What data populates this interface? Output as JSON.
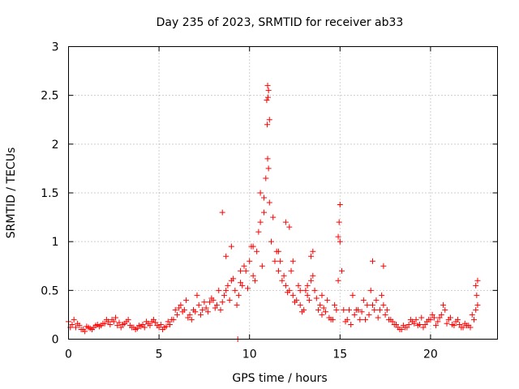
{
  "chart_data": {
    "type": "scatter",
    "title": "Day 235 of 2023, SRMTID for receiver ab33",
    "xlabel": "GPS time / hours",
    "ylabel": "SRMTID / TECUs",
    "xlim": [
      0,
      23.7
    ],
    "ylim": [
      0,
      3
    ],
    "xticks": [
      "0",
      "5",
      "10",
      "15",
      "20"
    ],
    "yticks": [
      "0",
      "0.5",
      "1",
      "1.5",
      "2",
      "2.5",
      "3"
    ],
    "grid": true,
    "marker": "plus",
    "series": [
      {
        "name": "SRMTID",
        "color": "#ff0000",
        "x": [
          0.0,
          0.2,
          0.4,
          0.6,
          0.8,
          1.0,
          1.2,
          1.4,
          1.6,
          1.8,
          2.0,
          2.2,
          2.4,
          2.6,
          2.8,
          3.0,
          3.2,
          3.4,
          3.6,
          3.8,
          4.0,
          4.2,
          4.4,
          4.6,
          4.8,
          5.0,
          5.2,
          5.4,
          5.6,
          5.8,
          6.0,
          6.2,
          6.4,
          6.6,
          6.8,
          7.0,
          7.2,
          7.4,
          7.6,
          7.8,
          8.0,
          8.2,
          8.4,
          8.6,
          8.8,
          9.0,
          9.2,
          9.4,
          9.6,
          9.8,
          10.0,
          10.2,
          10.4,
          10.6,
          10.8,
          10.9,
          11.0,
          11.05,
          11.1,
          11.2,
          11.4,
          11.6,
          11.8,
          12.0,
          12.2,
          12.4,
          12.6,
          12.8,
          13.0,
          13.2,
          13.4,
          13.6,
          13.8,
          14.0,
          14.2,
          14.4,
          14.6,
          14.8,
          14.9,
          15.0,
          15.1,
          15.2,
          15.4,
          15.6,
          15.8,
          16.0,
          16.2,
          16.4,
          16.6,
          16.8,
          17.0,
          17.2,
          17.4,
          17.6,
          17.8,
          18.0,
          18.2,
          18.4,
          18.6,
          18.8,
          19.0,
          19.2,
          19.4,
          19.6,
          19.8,
          20.0,
          20.2,
          20.4,
          20.6,
          20.8,
          21.0,
          21.2,
          21.4,
          21.6,
          21.8,
          22.0,
          22.2,
          22.4,
          22.5,
          22.6,
          0.1,
          0.3,
          0.5,
          0.7,
          0.9,
          1.1,
          1.3,
          1.5,
          1.7,
          1.9,
          2.1,
          2.3,
          2.5,
          2.7,
          2.9,
          3.1,
          3.3,
          3.5,
          3.7,
          3.9,
          4.1,
          4.3,
          4.5,
          4.7,
          4.9,
          5.1,
          5.3,
          5.5,
          5.7,
          5.9,
          6.1,
          6.3,
          6.5,
          6.7,
          6.9,
          7.1,
          7.3,
          7.5,
          7.7,
          7.9,
          8.1,
          8.3,
          8.5,
          8.7,
          8.9,
          9.1,
          9.3,
          9.5,
          9.7,
          9.9,
          10.1,
          10.3,
          10.5,
          10.7,
          11.3,
          11.5,
          11.7,
          11.9,
          12.1,
          12.3,
          12.5,
          12.7,
          12.9,
          13.1,
          13.3,
          13.5,
          13.7,
          13.9,
          14.1,
          14.3,
          14.5,
          14.7,
          15.3,
          15.5,
          15.7,
          15.9,
          16.1,
          16.3,
          16.5,
          16.7,
          16.9,
          17.1,
          17.3,
          17.5,
          17.7,
          17.9,
          18.1,
          18.3,
          18.5,
          18.7,
          18.9,
          19.1,
          19.3,
          19.5,
          19.7,
          19.9,
          20.1,
          20.3,
          20.5,
          20.7,
          20.9,
          21.1,
          21.3,
          21.5,
          21.7,
          21.9,
          22.1,
          22.3,
          22.55,
          10.95,
          11.0,
          11.05,
          11.1,
          10.98,
          11.02,
          8.5,
          9.0,
          9.35,
          10.6,
          10.8,
          12.0,
          12.2,
          13.4,
          13.5,
          14.9,
          14.95,
          15.0,
          16.8,
          17.4,
          22.5,
          22.6,
          8.7,
          9.5,
          10.2,
          11.6,
          12.4,
          12.8,
          13.2,
          14.0
        ],
        "y": [
          0.18,
          0.15,
          0.12,
          0.14,
          0.1,
          0.13,
          0.11,
          0.12,
          0.15,
          0.14,
          0.16,
          0.18,
          0.2,
          0.22,
          0.17,
          0.15,
          0.18,
          0.14,
          0.12,
          0.11,
          0.13,
          0.12,
          0.16,
          0.18,
          0.17,
          0.12,
          0.1,
          0.13,
          0.15,
          0.2,
          0.25,
          0.35,
          0.3,
          0.22,
          0.2,
          0.28,
          0.35,
          0.3,
          0.32,
          0.38,
          0.4,
          0.35,
          0.3,
          0.45,
          0.55,
          0.6,
          0.5,
          0.45,
          0.55,
          0.7,
          0.8,
          0.65,
          0.9,
          1.2,
          1.45,
          1.65,
          1.85,
          1.75,
          1.4,
          1.0,
          0.8,
          0.7,
          0.6,
          0.55,
          0.5,
          0.45,
          0.4,
          0.35,
          0.3,
          0.45,
          0.6,
          0.5,
          0.3,
          0.25,
          0.28,
          0.22,
          0.2,
          0.3,
          0.6,
          1.0,
          0.7,
          0.3,
          0.2,
          0.15,
          0.25,
          0.3,
          0.28,
          0.2,
          0.25,
          0.35,
          0.4,
          0.3,
          0.35,
          0.3,
          0.2,
          0.15,
          0.12,
          0.1,
          0.12,
          0.15,
          0.18,
          0.2,
          0.15,
          0.12,
          0.18,
          0.2,
          0.22,
          0.18,
          0.25,
          0.3,
          0.2,
          0.15,
          0.18,
          0.15,
          0.12,
          0.14,
          0.12,
          0.2,
          0.3,
          0.35,
          0.12,
          0.2,
          0.16,
          0.1,
          0.08,
          0.12,
          0.1,
          0.14,
          0.13,
          0.16,
          0.2,
          0.15,
          0.18,
          0.14,
          0.12,
          0.16,
          0.2,
          0.12,
          0.1,
          0.14,
          0.15,
          0.18,
          0.14,
          0.2,
          0.14,
          0.15,
          0.12,
          0.18,
          0.2,
          0.3,
          0.32,
          0.28,
          0.4,
          0.25,
          0.3,
          0.45,
          0.25,
          0.38,
          0.28,
          0.42,
          0.32,
          0.5,
          0.38,
          0.5,
          0.4,
          0.62,
          0.35,
          0.58,
          0.75,
          0.52,
          0.95,
          0.6,
          1.1,
          0.75,
          1.25,
          0.9,
          0.8,
          0.65,
          0.48,
          0.7,
          0.38,
          0.55,
          0.28,
          0.5,
          0.4,
          0.65,
          0.42,
          0.35,
          0.32,
          0.4,
          0.2,
          0.35,
          0.18,
          0.3,
          0.45,
          0.3,
          0.2,
          0.4,
          0.35,
          0.5,
          0.3,
          0.22,
          0.45,
          0.25,
          0.2,
          0.18,
          0.15,
          0.1,
          0.14,
          0.12,
          0.2,
          0.16,
          0.14,
          0.22,
          0.15,
          0.2,
          0.25,
          0.14,
          0.22,
          0.35,
          0.16,
          0.22,
          0.14,
          0.2,
          0.12,
          0.16,
          0.14,
          0.25,
          0.45,
          2.45,
          2.6,
          2.55,
          2.25,
          2.2,
          2.48,
          1.3,
          0.95,
          0.0,
          1.5,
          1.3,
          1.2,
          1.15,
          0.85,
          0.9,
          1.05,
          1.2,
          1.38,
          0.8,
          0.75,
          0.55,
          0.6,
          0.85,
          0.7,
          0.95,
          0.9,
          0.8,
          0.5,
          0.55,
          0.45
        ]
      }
    ]
  }
}
